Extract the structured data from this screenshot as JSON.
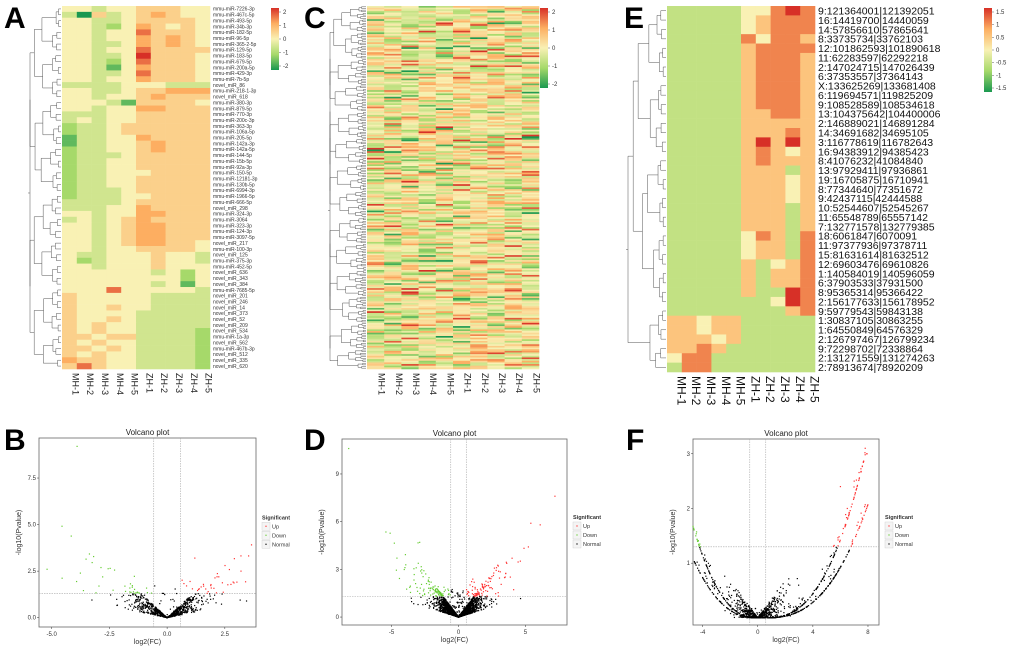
{
  "panel_letters": [
    "A",
    "B",
    "C",
    "D",
    "E",
    "F"
  ],
  "colors": {
    "low": "#1a9850",
    "lowmid": "#a6d96a",
    "mid": "#f9f1b4",
    "highmid": "#fdae61",
    "high": "#d73027",
    "up": "#ff3333",
    "down": "#66cc33",
    "normal": "#000000"
  },
  "chart_data": [
    {
      "id": "A",
      "type": "heatmap",
      "columns": [
        "MH-1",
        "MH-2",
        "MH-3",
        "MH-4",
        "MH-5",
        "ZH-1",
        "ZH-2",
        "ZH-3",
        "ZH-4",
        "ZH-5"
      ],
      "value_encoding": "each char c -> (c-4)/2",
      "colorbar": {
        "ticks": [
          "2",
          "1",
          "0",
          "-1",
          "-2"
        ],
        "range": [
          -2,
          2
        ]
      },
      "rows": [
        {
          "label": "mmu-miR-7226-3p",
          "v": "4434455544"
        },
        {
          "label": "mmu-miR-467c-5p",
          "v": "3053456544"
        },
        {
          "label": "mmu-miR-493-5p",
          "v": "4433455554"
        },
        {
          "label": "mmu-miR-34b-3p",
          "v": "4432465454"
        },
        {
          "label": "mmu-miR-182-5p",
          "v": "4434475554"
        },
        {
          "label": "mmu-miR-96-5p",
          "v": "4434465654"
        },
        {
          "label": "mmu-miR-365-2-5p",
          "v": "4433465654"
        },
        {
          "label": "mmu-miR-129-5p",
          "v": "4434475555"
        },
        {
          "label": "mmu-miR-183-5p",
          "v": "4433485554"
        },
        {
          "label": "mmu-miR-679-5p",
          "v": "4432475554"
        },
        {
          "label": "mmu-miR-200a-5p",
          "v": "4431465554"
        },
        {
          "label": "mmu-miR-429-3p",
          "v": "4433475554"
        },
        {
          "label": "mmu-miR-7b-5p",
          "v": "4434465554"
        },
        {
          "label": "novel_miR_86",
          "v": "3333444333"
        },
        {
          "label": "mmu-miR-218-1-3p",
          "v": "4433455666"
        },
        {
          "label": "novel_miR_618",
          "v": "4434456555"
        },
        {
          "label": "mmu-miR-380-3p",
          "v": "4443155554"
        },
        {
          "label": "mmu-miR-879-5p",
          "v": "4434466555"
        },
        {
          "label": "mmu-miR-770-3p",
          "v": "3334455555"
        },
        {
          "label": "mmu-miR-200c-3p",
          "v": "3434455555"
        },
        {
          "label": "mmu-miR-363-3p",
          "v": "2334555555"
        },
        {
          "label": "mmu-miR-106a-5p",
          "v": "2334555555"
        },
        {
          "label": "mmu-miR-205-5p",
          "v": "1334465555"
        },
        {
          "label": "mmu-miR-142a-3p",
          "v": "1334456555"
        },
        {
          "label": "mmu-miR-142a-5p",
          "v": "2334456555"
        },
        {
          "label": "mmu-miR-144-5p",
          "v": "2333455555"
        },
        {
          "label": "mmu-miR-15b-5p",
          "v": "2334455555"
        },
        {
          "label": "mmu-miR-92a-3p",
          "v": "2334455555"
        },
        {
          "label": "mmu-miR-150-5p",
          "v": "2334445555"
        },
        {
          "label": "mmu-miR-12181-3p",
          "v": "2334455555"
        },
        {
          "label": "mmu-miR-130b-5p",
          "v": "2334455555"
        },
        {
          "label": "mmu-miR-6994-3p",
          "v": "2333455555"
        },
        {
          "label": "mmu-miR-1966-5p",
          "v": "2333445555"
        },
        {
          "label": "mmu-miR-666-5p",
          "v": "3333455555"
        },
        {
          "label": "novel_miR_298",
          "v": "3334465555"
        },
        {
          "label": "mmu-miR-324-3p",
          "v": "4434466555"
        },
        {
          "label": "mmu-miR-3064",
          "v": "3434565555"
        },
        {
          "label": "mmu-miR-323-3p",
          "v": "4434566555"
        },
        {
          "label": "mmu-miR-124-3p",
          "v": "4434566555"
        },
        {
          "label": "mmu-miR-3097-5p",
          "v": "4434566555"
        },
        {
          "label": "novel_miR_217",
          "v": "4434566554"
        },
        {
          "label": "mmu-miR-100-3p",
          "v": "4434455554"
        },
        {
          "label": "novel_miR_125",
          "v": "4334445443"
        },
        {
          "label": "mmu-miR-375-3p",
          "v": "4234445443"
        },
        {
          "label": "mmu-miR-452-5p",
          "v": "4434445444"
        },
        {
          "label": "novel_miR_636",
          "v": "4444443424"
        },
        {
          "label": "novel_miR_343",
          "v": "4444444424"
        },
        {
          "label": "novel_miR_384",
          "v": "4444443414"
        },
        {
          "label": "mmu-miR-7685-5p",
          "v": "4447444443"
        },
        {
          "label": "novel_miR_201",
          "v": "5444443333"
        },
        {
          "label": "novel_miR_246",
          "v": "5444443333"
        },
        {
          "label": "novel_miR_14",
          "v": "5445443333"
        },
        {
          "label": "novel_miR_373",
          "v": "5444433333"
        },
        {
          "label": "novel_miR_52",
          "v": "5445433333"
        },
        {
          "label": "novel_miR_209",
          "v": "5454433333"
        },
        {
          "label": "novel_miR_534",
          "v": "5454433332"
        },
        {
          "label": "mmu-miR-1a-3p",
          "v": "5545533332"
        },
        {
          "label": "novel_miR_562",
          "v": "5454433332"
        },
        {
          "label": "mmu-miR-467b-3p",
          "v": "5545433332"
        },
        {
          "label": "novel_miR_512",
          "v": "5454433332"
        },
        {
          "label": "novel_miR_335",
          "v": "6554433332"
        },
        {
          "label": "novel_miR_620",
          "v": "5754433332"
        }
      ]
    },
    {
      "id": "C",
      "type": "heatmap",
      "columns": [
        "MH-1",
        "MH-2",
        "MH-3",
        "MH-4",
        "MH-5",
        "ZH-1",
        "ZH-2",
        "ZH-3",
        "ZH-4",
        "ZH-5"
      ],
      "row_count": 220,
      "colorbar": {
        "ticks": [
          "2",
          "1",
          "0",
          "-1",
          "-2"
        ],
        "range": [
          -2,
          2
        ]
      }
    },
    {
      "id": "E",
      "type": "heatmap",
      "columns": [
        "MH-1",
        "MH-2",
        "MH-3",
        "MH-4",
        "MH-5",
        "ZH-1",
        "ZH-2",
        "ZH-3",
        "ZH-4",
        "ZH-5"
      ],
      "value_encoding": "each char c -> (c-3)/2",
      "colorbar": {
        "ticks": [
          "1.5",
          "1",
          "0.5",
          "0",
          "-0.5",
          "-1",
          "-1.5"
        ],
        "range": [
          -1.5,
          1.5
        ]
      },
      "rows": [
        {
          "label": "9:121364001|121392051",
          "v": "2222233565"
        },
        {
          "label": "16:14419700|14440059",
          "v": "2222234555"
        },
        {
          "label": "14:57856610|57865641",
          "v": "2222234555"
        },
        {
          "label": "8:33735734|33762103",
          "v": "2222253554"
        },
        {
          "label": "12:101862593|101890618",
          "v": "2222245555"
        },
        {
          "label": "11:62283597|62292218",
          "v": "2222245554"
        },
        {
          "label": "2:147024715|147026439",
          "v": "2222245554"
        },
        {
          "label": "6:37353557|37364143",
          "v": "2222245554"
        },
        {
          "label": "X:133625269|133681408",
          "v": "2222245554"
        },
        {
          "label": "6:119694571|119825209",
          "v": "2222245554"
        },
        {
          "label": "9:108528589|108534618",
          "v": "2222245554"
        },
        {
          "label": "13:104375642|104400006",
          "v": "2222244554"
        },
        {
          "label": "2:146889021|146891284",
          "v": "2222244444"
        },
        {
          "label": "14:34691682|34695105",
          "v": "2222244454"
        },
        {
          "label": "3:116778619|116782643",
          "v": "2222246464"
        },
        {
          "label": "16:94383912|94385423",
          "v": "2222245434"
        },
        {
          "label": "8:41076232|41084840",
          "v": "2222245444"
        },
        {
          "label": "13:97929411|97936861",
          "v": "2222244424"
        },
        {
          "label": "19:16705875|16710941",
          "v": "2222244434"
        },
        {
          "label": "8:77344640|77351672",
          "v": "2222244434"
        },
        {
          "label": "9:42437115|42444588",
          "v": "2222244434"
        },
        {
          "label": "10:52544607|52545267",
          "v": "2222244424"
        },
        {
          "label": "11:65548789|65557142",
          "v": "2222244424"
        },
        {
          "label": "7:132771578|132779385",
          "v": "2222244424"
        },
        {
          "label": "18:6061847|6070091",
          "v": "2222235425"
        },
        {
          "label": "11:97377936|97378711",
          "v": "2222234425"
        },
        {
          "label": "15:81631614|81632512",
          "v": "2222234425"
        },
        {
          "label": "12:69603476|69610826",
          "v": "2222242345"
        },
        {
          "label": "1:140584019|140596059",
          "v": "2222242445"
        },
        {
          "label": "6:37903533|37931500",
          "v": "2222242445"
        },
        {
          "label": "8:95365314|95366422",
          "v": "2222242265"
        },
        {
          "label": "2:156177633|156178952",
          "v": "2222222365"
        },
        {
          "label": "9:59779543|59843138",
          "v": "2222222245"
        },
        {
          "label": "1:30837105|30863255",
          "v": "4434422222"
        },
        {
          "label": "1:64550849|64576329",
          "v": "4434422222"
        },
        {
          "label": "2:126797467|126799234",
          "v": "4443422222"
        },
        {
          "label": "9:72298702|72338864",
          "v": "4454222222"
        },
        {
          "label": "2:131271559|131274263",
          "v": "3552222222"
        },
        {
          "label": "2:78913674|78920209",
          "v": "2552222222"
        }
      ]
    },
    {
      "id": "B",
      "type": "scatter",
      "title": "Volcano plot",
      "xlabel": "log2(FC)",
      "ylabel": "-log10(Pvalue)",
      "xlim": [
        -5.55,
        3.85
      ],
      "ylim": [
        -0.5,
        9.65
      ],
      "xticks": [
        -5.0,
        -2.5,
        0.0,
        2.5
      ],
      "xtick_labels": [
        "-5.0",
        "-2.5",
        "0.0",
        "2.5"
      ],
      "yticks": [
        0,
        2.5,
        5,
        7.5
      ],
      "ytick_labels": [
        "0.0",
        "2.5",
        "5.0",
        "7.5"
      ],
      "fc_threshold": 0.58,
      "p_threshold": 1.3,
      "n_points": 900,
      "spread": 1.3,
      "shape": "v",
      "highlight_points": [
        {
          "x": -3.9,
          "y": 9.2,
          "group": "Down"
        },
        {
          "x": -5.2,
          "y": 2.6,
          "group": "Down"
        },
        {
          "x": 3.2,
          "y": 2.5,
          "group": "Up"
        },
        {
          "x": 1.2,
          "y": 3.2,
          "group": "Up"
        },
        {
          "x": 4.1,
          "y": 2.1,
          "group": "Up"
        }
      ],
      "legend": {
        "title": "Significant",
        "items": [
          "Up",
          "Down",
          "Normal"
        ],
        "position": "right"
      }
    },
    {
      "id": "D",
      "type": "scatter",
      "title": "Volcano plot",
      "xlabel": "log2(FC)",
      "ylabel": "-log10(Pvalue)",
      "xlim": [
        -8.7,
        8.1
      ],
      "ylim": [
        -0.5,
        11.2
      ],
      "xticks": [
        -5,
        0,
        5
      ],
      "xtick_labels": [
        "-5",
        "0",
        "5"
      ],
      "yticks": [
        0,
        3,
        6,
        9
      ],
      "ytick_labels": [
        "0",
        "3",
        "6",
        "9"
      ],
      "fc_threshold": 0.58,
      "p_threshold": 1.3,
      "n_points": 2600,
      "spread": 1.2,
      "shape": "v",
      "highlight_points": [
        {
          "x": -8.2,
          "y": 10.6,
          "group": "Down"
        },
        {
          "x": 7.2,
          "y": 7.6,
          "group": "Up"
        },
        {
          "x": 5.4,
          "y": 5.9,
          "group": "Up"
        },
        {
          "x": 6.1,
          "y": 5.8,
          "group": "Up"
        },
        {
          "x": -2.9,
          "y": 4.7,
          "group": "Down"
        },
        {
          "x": 4.0,
          "y": 3.7,
          "group": "Up"
        }
      ],
      "legend": {
        "title": "Significant",
        "items": [
          "Up",
          "Down",
          "Normal"
        ],
        "position": "right"
      }
    },
    {
      "id": "F",
      "type": "scatter",
      "title": "Volcano plot",
      "xlabel": "log2(FC)",
      "ylabel": "-log10(Pvalue)",
      "xlim": [
        -4.7,
        8.8
      ],
      "ylim": [
        -0.13,
        3.27
      ],
      "xticks": [
        -4,
        0,
        4,
        8
      ],
      "xtick_labels": [
        "-4",
        "0",
        "4",
        "8"
      ],
      "yticks": [
        1,
        2,
        3
      ],
      "ytick_labels": [
        "1",
        "2",
        "3"
      ],
      "fc_threshold": 0.58,
      "p_threshold": 1.3,
      "n_points": 1300,
      "spread": 3.5,
      "shape": "u",
      "highlight_points": [
        {
          "x": 7.8,
          "y": 3.1,
          "group": "Up"
        },
        {
          "x": 7.0,
          "y": 2.5,
          "group": "Up"
        },
        {
          "x": 6.0,
          "y": 2.4,
          "group": "Up"
        },
        {
          "x": 6.5,
          "y": 2.0,
          "group": "Up"
        },
        {
          "x": -4.5,
          "y": 1.5,
          "group": "Down"
        }
      ],
      "legend": {
        "title": "Significant",
        "items": [
          "Up",
          "Down",
          "Normal"
        ],
        "position": "right"
      }
    }
  ]
}
